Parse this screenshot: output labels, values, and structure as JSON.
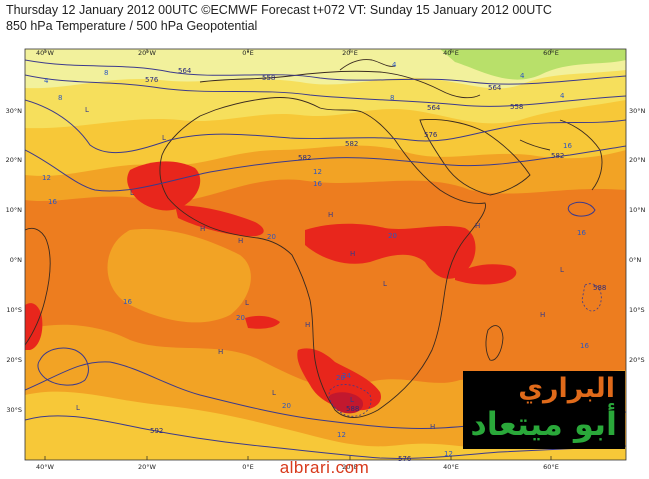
{
  "header": {
    "line1": "Thursday 12 January 2012 00UTC ©ECMWF Forecast t+072 VT: Sunday 15 January 2012 00UTC",
    "line2": "850 hPa Temperature / 500 hPa Geopotential"
  },
  "map": {
    "lon_labels": [
      "40°W",
      "20°W",
      "0°E",
      "20°E",
      "40°E",
      "60°E"
    ],
    "lat_labels": [
      "30°N",
      "20°N",
      "10°N",
      "0°N",
      "10°S",
      "20°S",
      "30°S"
    ],
    "temperature_labels": [
      "4",
      "4",
      "8",
      "8",
      "8",
      "4",
      "4",
      "12",
      "12",
      "16",
      "16",
      "16",
      "16",
      "16",
      "16",
      "20",
      "20",
      "20",
      "20",
      "20",
      "24",
      "12",
      "12"
    ],
    "geopotential_labels": [
      "576",
      "564",
      "558",
      "564",
      "576",
      "582",
      "582",
      "582",
      "558",
      "564",
      "588",
      "588",
      "592",
      "576"
    ],
    "pressure_markers": [
      "L",
      "L",
      "L",
      "H",
      "H",
      "H",
      "H",
      "H",
      "L",
      "L",
      "H",
      "H",
      "L",
      "L",
      "H",
      "H",
      "L",
      "L"
    ],
    "colors": {
      "band_4_8": "#f2f19c",
      "band_8_12": "#f6df5c",
      "band_12_16": "#f7c838",
      "band_16_20": "#f2a325",
      "band_20_24": "#ed7d1f",
      "band_24_plus": "#e8261c",
      "band_28_plus": "#c2182e",
      "coast": "#3a2a20",
      "geopotential_line": "#3c3a8c",
      "temperature_label": "#2c57c0"
    }
  },
  "watermark": {
    "line1": "البراري",
    "line2": "أبو ميتعاد",
    "colors": {
      "line1": "#e06a1a",
      "line2": "#2aa83a",
      "background": "#000000"
    }
  },
  "site": "albrari.com"
}
